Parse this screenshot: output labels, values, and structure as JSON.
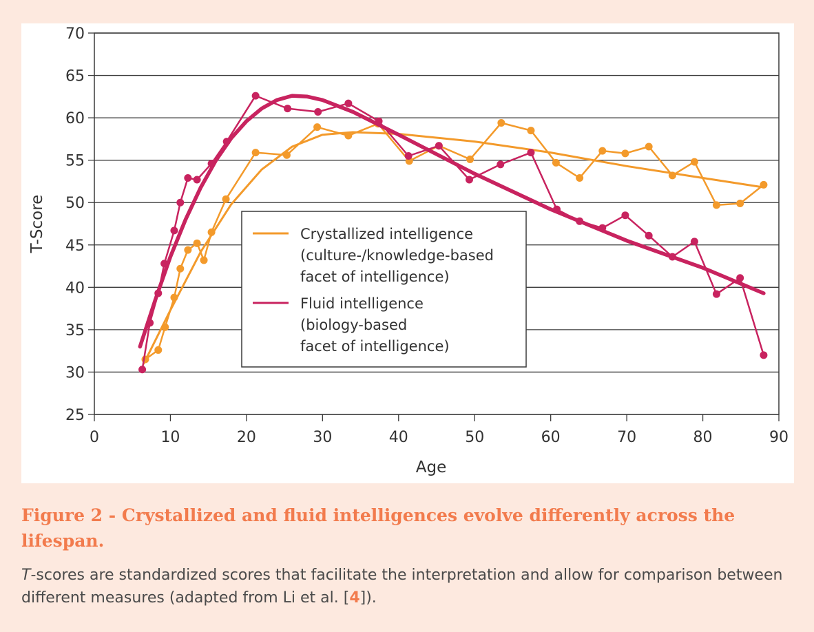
{
  "chart_data": {
    "type": "line",
    "xlabel": "Age",
    "ylabel": "T-Score",
    "xlim": [
      0,
      90
    ],
    "ylim": [
      25,
      70
    ],
    "x_ticks": [
      0,
      10,
      20,
      30,
      40,
      50,
      60,
      70,
      80,
      90
    ],
    "y_ticks": [
      25,
      30,
      35,
      40,
      45,
      50,
      55,
      60,
      65,
      70
    ],
    "grid": "horizontal",
    "legend_placement": "center",
    "series": [
      {
        "name": "Crystallized intelligence",
        "legend_lines": [
          "Crystallized intelligence",
          "(culture-/knowledge-based",
          "facet of intelligence)"
        ],
        "color": "#f39a2b",
        "points": [
          {
            "x": 6.7,
            "y": 31.5
          },
          {
            "x": 8.4,
            "y": 32.6
          },
          {
            "x": 9.3,
            "y": 35.3
          },
          {
            "x": 10.5,
            "y": 38.8
          },
          {
            "x": 11.3,
            "y": 42.2
          },
          {
            "x": 12.3,
            "y": 44.4
          },
          {
            "x": 13.5,
            "y": 45.2
          },
          {
            "x": 14.4,
            "y": 43.2
          },
          {
            "x": 15.4,
            "y": 46.5
          },
          {
            "x": 17.3,
            "y": 50.4
          },
          {
            "x": 21.2,
            "y": 55.9
          },
          {
            "x": 25.3,
            "y": 55.6
          },
          {
            "x": 29.3,
            "y": 58.9
          },
          {
            "x": 33.4,
            "y": 57.9
          },
          {
            "x": 37.3,
            "y": 59.3
          },
          {
            "x": 41.4,
            "y": 54.9
          },
          {
            "x": 45.3,
            "y": 56.7
          },
          {
            "x": 49.4,
            "y": 55.1
          },
          {
            "x": 53.5,
            "y": 59.4
          },
          {
            "x": 57.4,
            "y": 58.5
          },
          {
            "x": 60.7,
            "y": 54.7
          },
          {
            "x": 63.8,
            "y": 52.9
          },
          {
            "x": 66.8,
            "y": 56.1
          },
          {
            "x": 69.8,
            "y": 55.8
          },
          {
            "x": 72.9,
            "y": 56.6
          },
          {
            "x": 76.0,
            "y": 53.2
          },
          {
            "x": 78.9,
            "y": 54.8
          },
          {
            "x": 81.8,
            "y": 49.7
          },
          {
            "x": 84.9,
            "y": 49.9
          },
          {
            "x": 88.0,
            "y": 52.1
          }
        ],
        "trend": [
          {
            "x": 6.5,
            "y": 31.0
          },
          {
            "x": 10,
            "y": 37.3
          },
          {
            "x": 14,
            "y": 44.2
          },
          {
            "x": 18,
            "y": 49.8
          },
          {
            "x": 22,
            "y": 53.9
          },
          {
            "x": 26,
            "y": 56.6
          },
          {
            "x": 30,
            "y": 58.0
          },
          {
            "x": 34,
            "y": 58.3
          },
          {
            "x": 40,
            "y": 58.1
          },
          {
            "x": 50,
            "y": 57.2
          },
          {
            "x": 60,
            "y": 55.9
          },
          {
            "x": 70,
            "y": 54.3
          },
          {
            "x": 80,
            "y": 52.9
          },
          {
            "x": 88,
            "y": 51.8
          }
        ]
      },
      {
        "name": "Fluid intelligence",
        "legend_lines": [
          "Fluid intelligence",
          "(biology-based",
          "facet of intelligence)"
        ],
        "color": "#c8235f",
        "points": [
          {
            "x": 6.3,
            "y": 30.3
          },
          {
            "x": 7.3,
            "y": 35.8
          },
          {
            "x": 8.4,
            "y": 39.3
          },
          {
            "x": 9.2,
            "y": 42.8
          },
          {
            "x": 10.5,
            "y": 46.7
          },
          {
            "x": 11.3,
            "y": 50.0
          },
          {
            "x": 12.3,
            "y": 52.9
          },
          {
            "x": 13.5,
            "y": 52.7
          },
          {
            "x": 15.4,
            "y": 54.6
          },
          {
            "x": 17.4,
            "y": 57.2
          },
          {
            "x": 21.2,
            "y": 62.6
          },
          {
            "x": 25.4,
            "y": 61.1
          },
          {
            "x": 29.4,
            "y": 60.7
          },
          {
            "x": 33.4,
            "y": 61.7
          },
          {
            "x": 37.4,
            "y": 59.6
          },
          {
            "x": 41.3,
            "y": 55.5
          },
          {
            "x": 45.3,
            "y": 56.7
          },
          {
            "x": 49.3,
            "y": 52.7
          },
          {
            "x": 53.4,
            "y": 54.5
          },
          {
            "x": 57.4,
            "y": 55.9
          },
          {
            "x": 60.8,
            "y": 49.2
          },
          {
            "x": 63.8,
            "y": 47.8
          },
          {
            "x": 66.8,
            "y": 47.0
          },
          {
            "x": 69.8,
            "y": 48.5
          },
          {
            "x": 72.9,
            "y": 46.1
          },
          {
            "x": 76.0,
            "y": 43.6
          },
          {
            "x": 78.9,
            "y": 45.4
          },
          {
            "x": 81.8,
            "y": 39.2
          },
          {
            "x": 84.9,
            "y": 41.1
          },
          {
            "x": 88.0,
            "y": 32.0
          }
        ],
        "trend": [
          {
            "x": 6.0,
            "y": 33.0
          },
          {
            "x": 8,
            "y": 38.5
          },
          {
            "x": 10,
            "y": 43.6
          },
          {
            "x": 12,
            "y": 48.0
          },
          {
            "x": 14,
            "y": 51.8
          },
          {
            "x": 16,
            "y": 55.0
          },
          {
            "x": 18,
            "y": 57.6
          },
          {
            "x": 20,
            "y": 59.6
          },
          {
            "x": 22,
            "y": 61.1
          },
          {
            "x": 24,
            "y": 62.1
          },
          {
            "x": 26,
            "y": 62.6
          },
          {
            "x": 28,
            "y": 62.5
          },
          {
            "x": 30,
            "y": 62.1
          },
          {
            "x": 34,
            "y": 60.7
          },
          {
            "x": 40,
            "y": 58.0
          },
          {
            "x": 50,
            "y": 53.4
          },
          {
            "x": 60,
            "y": 49.2
          },
          {
            "x": 70,
            "y": 45.5
          },
          {
            "x": 80,
            "y": 42.3
          },
          {
            "x": 88,
            "y": 39.3
          }
        ]
      }
    ]
  },
  "caption": {
    "title": "Figure 2 - Crystallized and fluid intelligences evolve differently across the lifespan.",
    "body_italic": "T",
    "body_text": "-scores are standardized scores that facilitate the interpretation and allow for comparison between different measures (adapted from Li et al. [",
    "body_ref": "4",
    "body_end": "])."
  }
}
